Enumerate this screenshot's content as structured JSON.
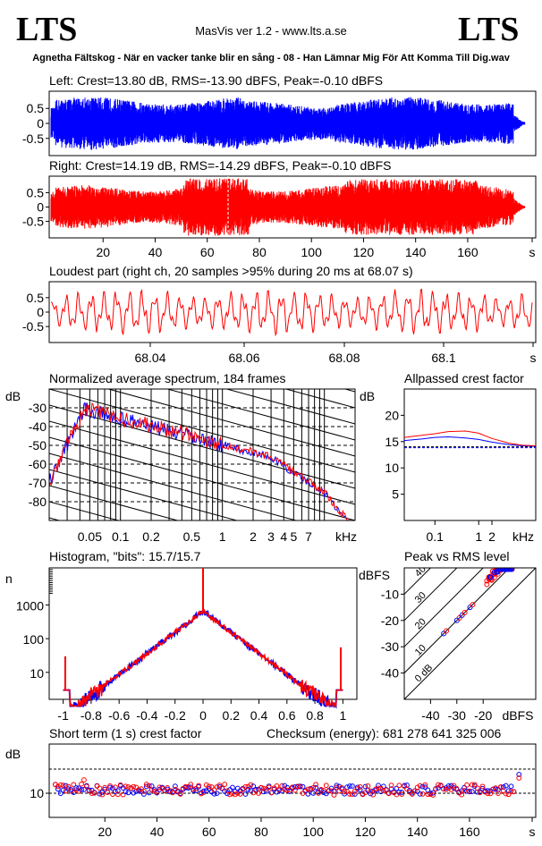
{
  "header": {
    "logo_left": "LTS",
    "logo_right": "LTS",
    "app_title": "MasVis ver 1.2 - www.lts.a.se",
    "track": "Agnetha Fältskog - När en vacker tanke blir en sång - 08 - Han Lämnar Mig För Att Komma Till Dig.wav"
  },
  "colors": {
    "left": "#0000ff",
    "right": "#ff0000",
    "axis": "#000000"
  },
  "chart_data": [
    {
      "id": "left",
      "type": "line",
      "title": "Left: Crest=13.80 dB, RMS=-13.90 dBFS, Peak=-0.10 dBFS",
      "ylim": [
        -1,
        1
      ],
      "yticks": [
        "0.5",
        "0",
        "-0.5"
      ],
      "xlim": [
        0,
        182
      ],
      "series": [
        {
          "color": "#0000ff"
        }
      ]
    },
    {
      "id": "right",
      "type": "line",
      "title": "Right: Crest=14.19 dB, RMS=-14.29 dBFS, Peak=-0.10 dBFS",
      "ylim": [
        -1,
        1
      ],
      "yticks": [
        "0.5",
        "0",
        "-0.5"
      ],
      "xlim": [
        0,
        182
      ],
      "xticks": [
        "20",
        "40",
        "60",
        "80",
        "100",
        "120",
        "140",
        "160",
        "s"
      ],
      "series": [
        {
          "color": "#ff0000"
        }
      ],
      "marker_x": 68
    },
    {
      "id": "loudest",
      "type": "line",
      "title": "Loudest part (right ch, 20 samples >95% during 20 ms at 68.07 s)",
      "ylim": [
        -1,
        1
      ],
      "yticks": [
        "0.5",
        "0",
        "-0.5"
      ],
      "xticks": [
        "68.04",
        "68.06",
        "68.08",
        "68.1",
        "s"
      ],
      "series": [
        {
          "color": "#ff0000"
        }
      ]
    },
    {
      "id": "spectrum",
      "type": "line",
      "title": "Normalized average spectrum, 184 frames",
      "ylabel": "dB",
      "yticks": [
        "-30",
        "-40",
        "-50",
        "-60",
        "-70",
        "-80"
      ],
      "xlabel": "kHz",
      "xticks": [
        "0.05",
        "0.1",
        "0.2",
        "0.5",
        "1",
        "2",
        "3",
        "4",
        "5",
        "7"
      ],
      "xlim": [
        0.02,
        20
      ],
      "ylim": [
        -90,
        -20
      ],
      "series": [
        {
          "name": "left",
          "color": "#0000ff"
        },
        {
          "name": "right",
          "color": "#ff0000"
        }
      ]
    },
    {
      "id": "allpass",
      "type": "line",
      "title": "Allpassed crest factor",
      "ylabel": "dB",
      "yticks": [
        "20",
        "15",
        "10",
        "5"
      ],
      "xticks": [
        "0.1",
        "1",
        "2",
        "kHz"
      ],
      "ylim": [
        0,
        25
      ],
      "series": [
        {
          "name": "left",
          "color": "#0000ff",
          "x": [
            0.02,
            0.05,
            0.1,
            0.2,
            0.5,
            1,
            2,
            5,
            10,
            20
          ],
          "values": [
            15.2,
            15.5,
            15.8,
            15.9,
            15.7,
            15.4,
            14.9,
            14.4,
            14.2,
            14.1
          ]
        },
        {
          "name": "right",
          "color": "#ff0000",
          "x": [
            0.02,
            0.05,
            0.1,
            0.2,
            0.5,
            1,
            2,
            5,
            10,
            20
          ],
          "values": [
            15.8,
            16.2,
            16.5,
            16.9,
            17.0,
            16.6,
            15.6,
            14.7,
            14.3,
            14.2
          ]
        }
      ],
      "reference": 14.0
    },
    {
      "id": "histogram",
      "type": "line",
      "title": "Histogram, \"bits\": 15.7/15.7",
      "ylabel": "n",
      "yticks": [
        "1000",
        "100",
        "10"
      ],
      "xticks": [
        "-1",
        "-0.8",
        "-0.6",
        "-0.4",
        "-0.2",
        "0",
        "0.2",
        "0.4",
        "0.6",
        "0.8",
        "1"
      ],
      "xlim": [
        -1.1,
        1.1
      ],
      "series": [
        {
          "name": "left",
          "color": "#0000ff"
        },
        {
          "name": "right",
          "color": "#ff0000"
        }
      ]
    },
    {
      "id": "peakrms",
      "type": "scatter",
      "title": "Peak vs RMS level",
      "ylabel": "dBFS",
      "xlabel": "dBFS",
      "yticks": [
        "-10",
        "-20",
        "-30",
        "-40"
      ],
      "xticks": [
        "-40",
        "-30",
        "-20"
      ],
      "diag_labels": [
        "40",
        "30",
        "20",
        "10",
        "0 dB"
      ],
      "xlim": [
        -50,
        0
      ],
      "ylim": [
        -50,
        0
      ],
      "series": [
        {
          "name": "left",
          "color": "#0000ff"
        },
        {
          "name": "right",
          "color": "#ff0000"
        }
      ]
    },
    {
      "id": "shortterm",
      "type": "scatter",
      "title": "Short term (1 s) crest factor",
      "checksum": "Checksum (energy):   681 278 641 325 006",
      "ylabel": "dB",
      "yticks": [
        "10"
      ],
      "xticks": [
        "20",
        "40",
        "60",
        "80",
        "100",
        "120",
        "140",
        "160",
        "s"
      ],
      "xlim": [
        0,
        182
      ],
      "series": [
        {
          "name": "left",
          "color": "#0000ff"
        },
        {
          "name": "right",
          "color": "#ff0000"
        }
      ]
    }
  ]
}
